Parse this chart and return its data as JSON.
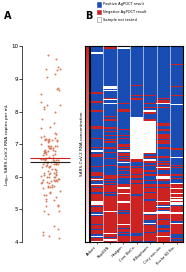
{
  "panel_a_label": "A",
  "panel_b_label": "B",
  "scatter_color": "#D4704A",
  "scatter_median_color": "#222222",
  "scatter_mean_color": "#CC2222",
  "ylim": [
    4,
    10
  ],
  "yticks": [
    4,
    5,
    6,
    7,
    8,
    9,
    10
  ],
  "ylabel_a": "Log₁₀ SARS-CoV-2 RNA copies per mL",
  "legend_labels": [
    "Positive AgPOCT result",
    "Negative AgPOCT result",
    "Sample not tested"
  ],
  "legend_colors": [
    "#1A4DB3",
    "#CC2222",
    "#FFFFFF"
  ],
  "legend_edge_colors": [
    "#1A4DB3",
    "#CC2222",
    "#888888"
  ],
  "heatmap_positive": "#1A4DB3",
  "heatmap_negative": "#CC2222",
  "heatmap_not_tested": "#FFFFFF",
  "col_labels": [
    "Abbott",
    "RapiGEN",
    "Healgen",
    "Coro BioCo.",
    "R-Biopharm",
    "Citry non-inv.",
    "Roche SD Bio."
  ],
  "ylabel_b": "SARS-CoV-2 RNA concentration",
  "num_rows": 152,
  "n_cols": 7,
  "scatter_median": 6.35,
  "scatter_mean": 6.42
}
